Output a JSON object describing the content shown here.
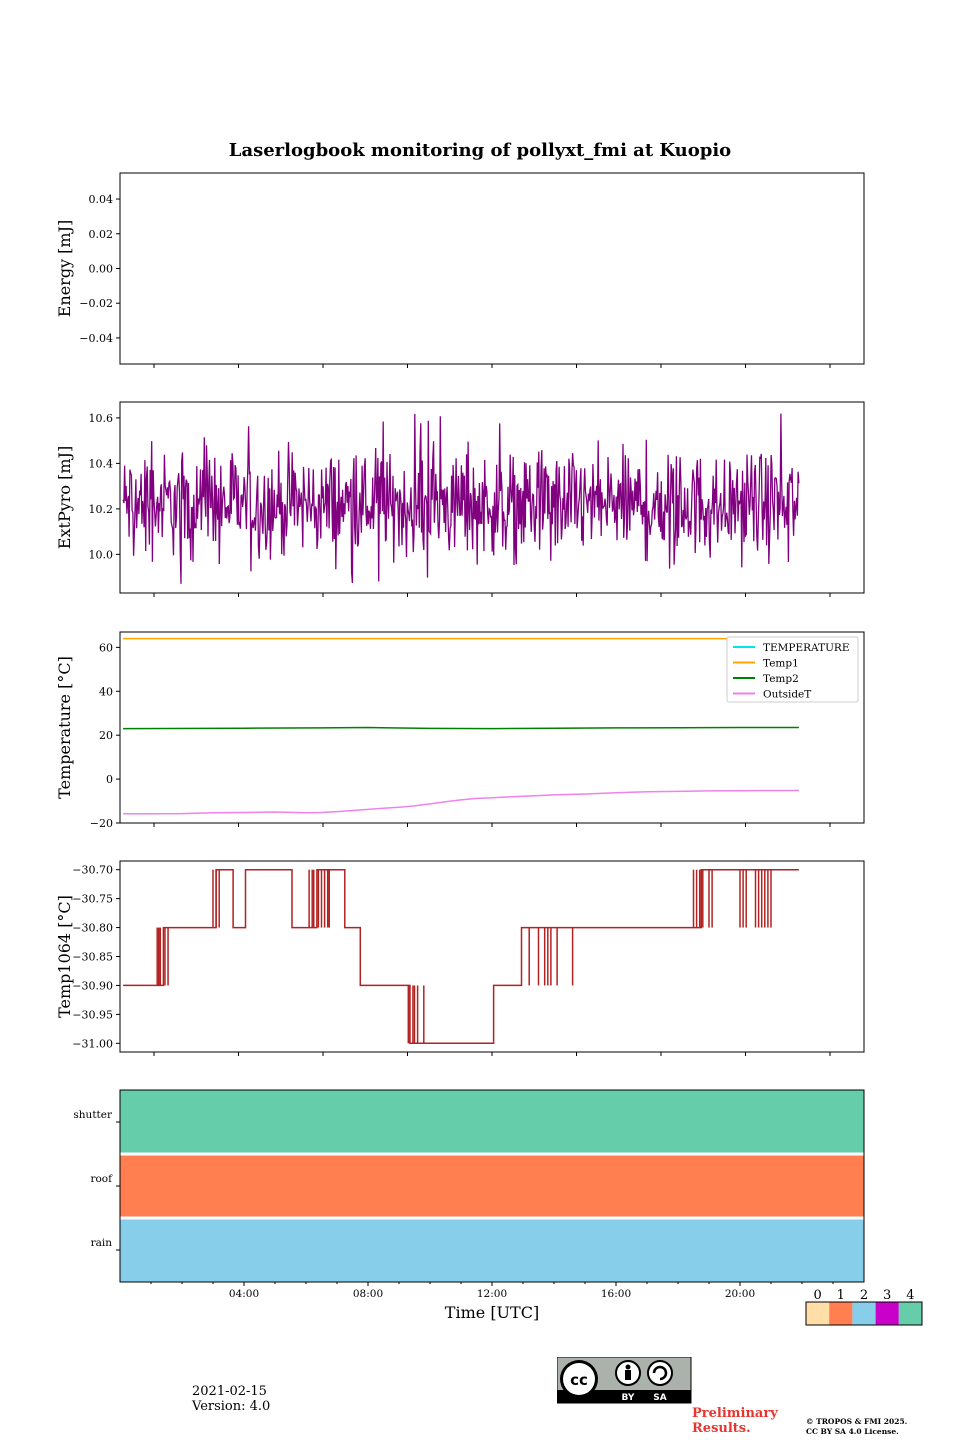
{
  "title": "Laserlogbook monitoring of pollyxt_fmi at Kuopio",
  "footer": {
    "date": "2021-02-15",
    "version": "Version: 4.0",
    "preliminary": "Preliminary Results.",
    "copyright_line1": "© TROPOS & FMI 2025.",
    "copyright_line2": "CC BY SA 4.0 License.",
    "license_badge": {
      "by": "BY",
      "sa": "SA"
    }
  },
  "chart_data": [
    {
      "type": "line",
      "panel": "energy",
      "ylabel": "Energy [mJ]",
      "ylim": [
        -0.055,
        0.055
      ],
      "yticks": [
        0.04,
        0.02,
        0.0,
        -0.02,
        -0.04
      ],
      "ytick_labels": [
        "0.04",
        "0.02",
        "0.00",
        "−0.02",
        "−0.04"
      ],
      "series": []
    },
    {
      "type": "line",
      "panel": "extpyro",
      "ylabel": "ExtPyro [mJ]",
      "ylim": [
        9.83,
        10.67
      ],
      "yticks": [
        10.6,
        10.4,
        10.2,
        10.0
      ],
      "ytick_labels": [
        "10.6",
        "10.4",
        "10.2",
        "10.0"
      ],
      "color": "#800080",
      "x_range_hours": [
        0.1,
        21.9
      ],
      "mean": 10.22,
      "min": 9.87,
      "max": 10.63,
      "note": "noisy signal fluctuating around 10.22 mJ between ~9.87 and ~10.63"
    },
    {
      "type": "line",
      "panel": "temperature",
      "ylabel": "Temperature [°C]",
      "ylim": [
        -20,
        67
      ],
      "yticks": [
        60,
        40,
        20,
        0,
        -20
      ],
      "ytick_labels": [
        "60",
        "40",
        "20",
        "0",
        "−20"
      ],
      "series": [
        {
          "name": "TEMPERATURE",
          "color": "#00e5ee",
          "x": [],
          "values": []
        },
        {
          "name": "Temp1",
          "color": "#ffa500",
          "x": [
            0.1,
            21.9
          ],
          "values": [
            64,
            64
          ]
        },
        {
          "name": "Temp2",
          "color": "#008000",
          "x": [
            0.1,
            4,
            6.5,
            8,
            10,
            12,
            14,
            16,
            18,
            20,
            21.9
          ],
          "values": [
            23,
            23.2,
            23.3,
            23.5,
            23.1,
            23,
            23.2,
            23.3,
            23.4,
            23.5,
            23.5
          ]
        },
        {
          "name": "OutsideT",
          "color": "#ee82ee",
          "x": [
            0.1,
            1,
            2,
            3,
            4,
            5,
            6,
            6.5,
            7,
            7.5,
            8,
            8.5,
            9,
            9.5,
            10,
            10.5,
            11,
            11.5,
            12,
            13,
            14,
            15,
            16,
            17,
            18,
            19,
            20,
            21,
            21.9
          ],
          "values": [
            -15.8,
            -15.8,
            -15.7,
            -15.3,
            -15.2,
            -15.0,
            -15.3,
            -15.2,
            -14.8,
            -14.3,
            -13.8,
            -13.3,
            -12.8,
            -12.2,
            -11.3,
            -10.3,
            -9.5,
            -8.8,
            -8.5,
            -7.8,
            -7.2,
            -6.8,
            -6.2,
            -5.8,
            -5.6,
            -5.4,
            -5.3,
            -5.2,
            -5.2
          ]
        }
      ],
      "legend": "top-right"
    },
    {
      "type": "line",
      "panel": "temp1064",
      "ylabel": "Temp1064 [°C]",
      "ylim": [
        -31.015,
        -30.685
      ],
      "yticks": [
        -30.7,
        -30.75,
        -30.8,
        -30.85,
        -30.9,
        -30.95,
        -31.0
      ],
      "ytick_labels": [
        "−30.70",
        "−30.75",
        "−30.80",
        "−30.85",
        "−30.90",
        "−30.95",
        "−31.00"
      ],
      "color": "#b22222",
      "steps": [
        [
          0.1,
          -30.9
        ],
        [
          1.3,
          -30.9
        ],
        [
          1.4,
          -30.8
        ],
        [
          3.0,
          -30.8
        ],
        [
          3.1,
          -30.7
        ],
        [
          3.6,
          -30.7
        ],
        [
          3.65,
          -30.8
        ],
        [
          4.0,
          -30.8
        ],
        [
          4.05,
          -30.7
        ],
        [
          5.5,
          -30.7
        ],
        [
          5.55,
          -30.8
        ],
        [
          6.3,
          -30.8
        ],
        [
          6.35,
          -30.7
        ],
        [
          7.2,
          -30.7
        ],
        [
          7.25,
          -30.8
        ],
        [
          7.7,
          -30.8
        ],
        [
          7.75,
          -30.9
        ],
        [
          9.3,
          -30.9
        ],
        [
          9.35,
          -31.0
        ],
        [
          12.0,
          -31.0
        ],
        [
          12.05,
          -30.9
        ],
        [
          12.9,
          -30.9
        ],
        [
          12.95,
          -30.8
        ],
        [
          18.7,
          -30.8
        ],
        [
          18.75,
          -30.7
        ],
        [
          21.9,
          -30.7
        ]
      ],
      "spikes": [
        {
          "x": [
            1.2,
            1.25,
            1.3,
            1.45,
            1.55
          ],
          "range": [
            -30.9,
            -30.8
          ]
        },
        {
          "x": [
            3.0,
            3.1,
            3.2
          ],
          "range": [
            -30.8,
            -30.7
          ]
        },
        {
          "x": [
            6.1,
            6.2,
            6.25,
            6.4,
            6.5,
            6.6,
            6.7,
            6.75
          ],
          "range": [
            -30.8,
            -30.7
          ]
        },
        {
          "x": [
            9.3,
            9.35,
            9.45,
            9.5,
            9.6,
            9.8
          ],
          "range": [
            -31.0,
            -30.9
          ]
        },
        {
          "x": [
            13.2,
            13.5,
            13.7,
            13.8,
            13.9,
            14.1,
            14.6
          ],
          "range": [
            -30.9,
            -30.8
          ]
        },
        {
          "x": [
            18.5,
            18.6,
            18.7,
            18.8,
            19.0,
            19.1,
            20.0,
            20.1,
            20.2,
            20.5,
            20.6,
            20.7,
            20.8,
            20.9,
            21.0
          ],
          "range": [
            -30.8,
            -30.7
          ]
        }
      ]
    },
    {
      "type": "heatmap",
      "panel": "status",
      "rows": [
        "shutter",
        "roof",
        "rain"
      ],
      "row_values": [
        4,
        1,
        2
      ],
      "xlabel": "Time [UTC]",
      "xticks": [
        "04:00",
        "08:00",
        "12:00",
        "16:00",
        "20:00"
      ],
      "xtick_hours": [
        4,
        8,
        12,
        16,
        20
      ],
      "xlim_hours": [
        0,
        24
      ],
      "colorbar": {
        "labels": [
          "0",
          "1",
          "2",
          "3",
          "4"
        ],
        "colors": [
          "#ffdea8",
          "#ff7f50",
          "#87ceeb",
          "#c800c8",
          "#66cdaa"
        ]
      }
    }
  ]
}
